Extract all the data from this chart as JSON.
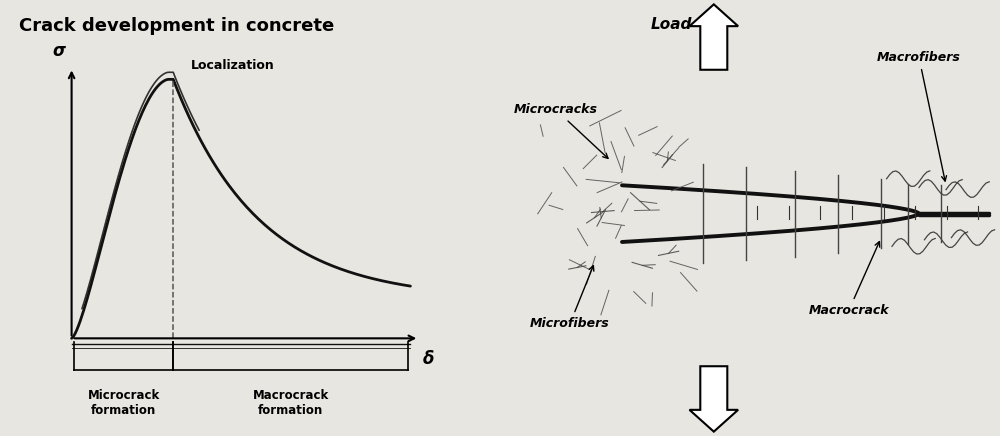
{
  "title_left": "Crack development in concrete",
  "title_fontsize": 13,
  "bg_color": "#e8e6e1",
  "curve_color": "#1a1a1a",
  "label_sigma": "σ",
  "label_delta": "δ",
  "label_localization": "Localization",
  "label_microcrack": "Microcrack\nformation",
  "label_macrocrack_formation": "Macrocrack\nformation",
  "label_load": "Load",
  "label_macrofibers": "Macrofibers",
  "label_microcracks": "Microcracks",
  "label_microfibers": "Microfibers",
  "label_macrocrack": "Macrocrack"
}
